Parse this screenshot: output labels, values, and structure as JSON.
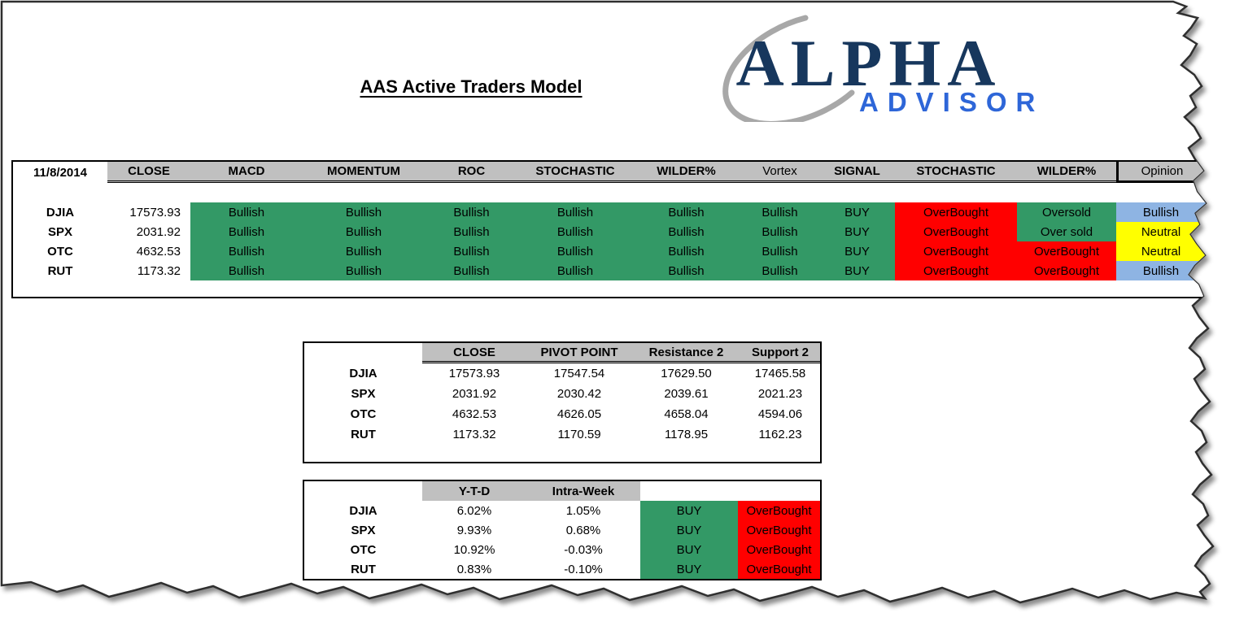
{
  "report": {
    "title": "AAS Active Traders Model"
  },
  "logo": {
    "primary": "ALPHA",
    "secondary": "ADVISOR",
    "primary_color": "#17375D",
    "secondary_color": "#2E66D8",
    "swoosh_color": "#A8A8A8"
  },
  "palette": {
    "bullish_green": "#339966",
    "overbought_red": "#FF0000",
    "neutral_yellow": "#FFFF00",
    "opinion_blue": "#8EB4E3",
    "header_gray": "#C0C0C0"
  },
  "signals_table": {
    "date": "11/8/2014",
    "headers": [
      "CLOSE",
      "MACD",
      "MOMENTUM",
      "ROC",
      "STOCHASTIC",
      "WILDER%",
      "Vortex",
      "SIGNAL",
      "STOCHASTIC",
      "WILDER%",
      "Opinion"
    ],
    "rows": [
      {
        "label": "DJIA",
        "close": "17573.93",
        "cells": [
          {
            "text": "Bullish",
            "bg": "#339966"
          },
          {
            "text": "Bullish",
            "bg": "#339966"
          },
          {
            "text": "Bullish",
            "bg": "#339966"
          },
          {
            "text": "Bullish",
            "bg": "#339966"
          },
          {
            "text": "Bullish",
            "bg": "#339966"
          },
          {
            "text": "Bullish",
            "bg": "#339966"
          },
          {
            "text": "BUY",
            "bg": "#339966"
          },
          {
            "text": "OverBought",
            "bg": "#FF0000"
          },
          {
            "text": "Oversold",
            "bg": "#339966"
          },
          {
            "text": "Bullish",
            "bg": "#8EB4E3"
          }
        ]
      },
      {
        "label": "SPX",
        "close": "2031.92",
        "cells": [
          {
            "text": "Bullish",
            "bg": "#339966"
          },
          {
            "text": "Bullish",
            "bg": "#339966"
          },
          {
            "text": "Bullish",
            "bg": "#339966"
          },
          {
            "text": "Bullish",
            "bg": "#339966"
          },
          {
            "text": "Bullish",
            "bg": "#339966"
          },
          {
            "text": "Bullish",
            "bg": "#339966"
          },
          {
            "text": "BUY",
            "bg": "#339966"
          },
          {
            "text": "OverBought",
            "bg": "#FF0000"
          },
          {
            "text": "Over sold",
            "bg": "#339966"
          },
          {
            "text": "Neutral",
            "bg": "#FFFF00"
          }
        ]
      },
      {
        "label": "OTC",
        "close": "4632.53",
        "cells": [
          {
            "text": "Bullish",
            "bg": "#339966"
          },
          {
            "text": "Bullish",
            "bg": "#339966"
          },
          {
            "text": "Bullish",
            "bg": "#339966"
          },
          {
            "text": "Bullish",
            "bg": "#339966"
          },
          {
            "text": "Bullish",
            "bg": "#339966"
          },
          {
            "text": "Bullish",
            "bg": "#339966"
          },
          {
            "text": "BUY",
            "bg": "#339966"
          },
          {
            "text": "OverBought",
            "bg": "#FF0000"
          },
          {
            "text": "OverBought",
            "bg": "#FF0000"
          },
          {
            "text": "Neutral",
            "bg": "#FFFF00"
          }
        ]
      },
      {
        "label": "RUT",
        "close": "1173.32",
        "cells": [
          {
            "text": "Bullish",
            "bg": "#339966"
          },
          {
            "text": "Bullish",
            "bg": "#339966"
          },
          {
            "text": "Bullish",
            "bg": "#339966"
          },
          {
            "text": "Bullish",
            "bg": "#339966"
          },
          {
            "text": "Bullish",
            "bg": "#339966"
          },
          {
            "text": "Bullish",
            "bg": "#339966"
          },
          {
            "text": "BUY",
            "bg": "#339966"
          },
          {
            "text": "OverBought",
            "bg": "#FF0000"
          },
          {
            "text": "OverBought",
            "bg": "#FF0000"
          },
          {
            "text": "Bullish",
            "bg": "#8EB4E3"
          }
        ]
      }
    ]
  },
  "pivot_table": {
    "headers": [
      "CLOSE",
      "PIVOT POINT",
      "Resistance 2",
      "Support 2"
    ],
    "rows": [
      {
        "label": "DJIA",
        "values": [
          "17573.93",
          "17547.54",
          "17629.50",
          "17465.58"
        ]
      },
      {
        "label": "SPX",
        "values": [
          "2031.92",
          "2030.42",
          "2039.61",
          "2021.23"
        ]
      },
      {
        "label": "OTC",
        "values": [
          "4632.53",
          "4626.05",
          "4658.04",
          "4594.06"
        ]
      },
      {
        "label": "RUT",
        "values": [
          "1173.32",
          "1170.59",
          "1178.95",
          "1162.23"
        ]
      }
    ]
  },
  "performance_table": {
    "headers": [
      "Y-T-D",
      "Intra-Week"
    ],
    "rows": [
      {
        "label": "DJIA",
        "ytd": "6.02%",
        "intra_week": "1.05%",
        "signal": {
          "text": "BUY",
          "bg": "#339966"
        },
        "condition": {
          "text": "OverBought",
          "bg": "#FF0000"
        }
      },
      {
        "label": "SPX",
        "ytd": "9.93%",
        "intra_week": "0.68%",
        "signal": {
          "text": "BUY",
          "bg": "#339966"
        },
        "condition": {
          "text": "OverBought",
          "bg": "#FF0000"
        }
      },
      {
        "label": "OTC",
        "ytd": "10.92%",
        "intra_week": "-0.03%",
        "signal": {
          "text": "BUY",
          "bg": "#339966"
        },
        "condition": {
          "text": "OverBought",
          "bg": "#FF0000"
        }
      },
      {
        "label": "RUT",
        "ytd": "0.83%",
        "intra_week": "-0.10%",
        "signal": {
          "text": "BUY",
          "bg": "#339966"
        },
        "condition": {
          "text": "OverBought",
          "bg": "#FF0000"
        }
      }
    ]
  }
}
